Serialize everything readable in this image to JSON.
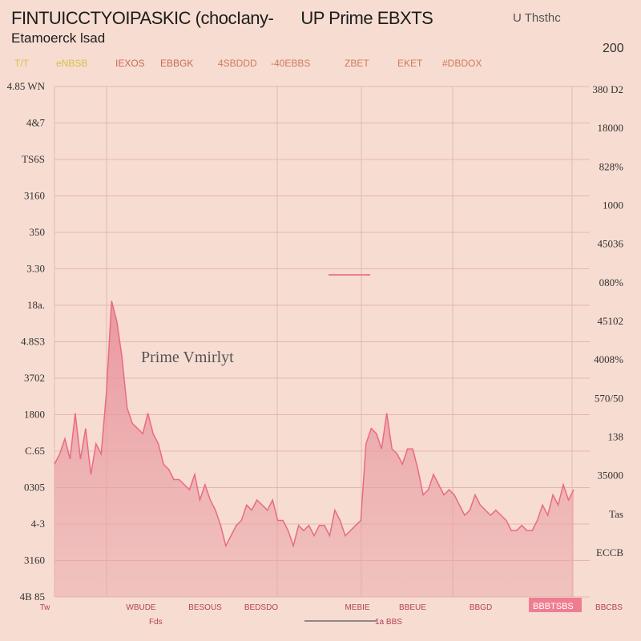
{
  "header": {
    "title_left": "FINTUICCTYOIPASKIC (chocIany-",
    "title_mid": "UP Prime EBXTS",
    "subtitle": "Etamoerck lsad",
    "topright_note": "U Thsthc",
    "topright_value": "200",
    "tickers": [
      "T/T",
      "eNBSB",
      "IEXOS",
      "EBBGK",
      "4SBDDD",
      "-40EBBS",
      "ZBET",
      "EKET",
      "#DBDOX"
    ]
  },
  "chart_data": {
    "type": "area",
    "title": "FINTUICCTYOIPASKIC (chocIany-",
    "subtitle": "Etamoerck lsad",
    "annotation": "Prime Vmirlyt",
    "ylabels_left": [
      "4.85 WN",
      "4&7",
      "TS6S",
      "3160",
      "350",
      "3.30",
      "18a.",
      "4.8S3",
      "3702",
      "1800",
      "C.65",
      "0305",
      "4-3",
      "3160",
      "4B 85"
    ],
    "ylabels_right": [
      "380 D2",
      "18000",
      "828%",
      "1000",
      "45036",
      "080%",
      "45102",
      "4008%",
      "570/50",
      "138",
      "35000",
      "Tas",
      "ECCB"
    ],
    "xlabels": [
      "Tw",
      "WBUDE",
      "BESOUS",
      "BEDSDO",
      "MEBIE",
      "BBEUE",
      "BBGD",
      "BBCBS"
    ],
    "x_axis_caption": "Fds",
    "x_axis_range_label": "1a BBS",
    "highlight_label": "BBBTSBS",
    "ylim": [
      0,
      100
    ],
    "xlim": [
      0,
      100
    ],
    "grid": true,
    "legend": "none",
    "colors": {
      "line": "#e96a85",
      "fill": "#e9a3a8",
      "grid": "#e5b7ad",
      "axis": "#d9a89e",
      "highlight": "#ef7d92"
    },
    "x": [
      0,
      1,
      2,
      3,
      4,
      5,
      6,
      7,
      8,
      9,
      10,
      11,
      12,
      13,
      14,
      15,
      16,
      17,
      18,
      19,
      20,
      21,
      22,
      23,
      24,
      25,
      26,
      27,
      28,
      29,
      30,
      31,
      32,
      33,
      34,
      35,
      36,
      37,
      38,
      39,
      40,
      41,
      42,
      43,
      44,
      45,
      46,
      47,
      48,
      49,
      50,
      51,
      52,
      53,
      54,
      55,
      56,
      57,
      58,
      59,
      60,
      61,
      62,
      63,
      64,
      65,
      66,
      67,
      68,
      69,
      70,
      71,
      72,
      73,
      74,
      75,
      76,
      77,
      78,
      79,
      80,
      81,
      82,
      83,
      84,
      85,
      86,
      87,
      88,
      89,
      90,
      91,
      92,
      93,
      94,
      95,
      96,
      97,
      98,
      99,
      100
    ],
    "values": [
      26,
      28,
      31,
      27,
      36,
      27,
      33,
      24,
      30,
      28,
      40,
      58,
      54,
      47,
      37,
      34,
      33,
      32,
      36,
      32,
      30,
      26,
      25,
      23,
      23,
      22,
      21,
      24,
      19,
      22,
      19,
      17,
      14,
      10,
      12,
      14,
      15,
      18,
      17,
      19,
      18,
      17,
      19,
      15,
      15,
      13,
      10,
      14,
      13,
      14,
      12,
      14,
      14,
      12,
      17,
      15,
      12,
      13,
      14,
      15,
      30,
      33,
      32,
      29,
      36,
      29,
      28,
      26,
      29,
      29,
      25,
      20,
      21,
      24,
      22,
      20,
      21,
      20,
      18,
      16,
      17,
      20,
      18,
      17,
      16,
      17,
      16,
      15,
      13,
      13,
      14,
      13,
      13,
      15,
      18,
      16,
      20,
      18,
      22,
      19,
      21
    ]
  }
}
